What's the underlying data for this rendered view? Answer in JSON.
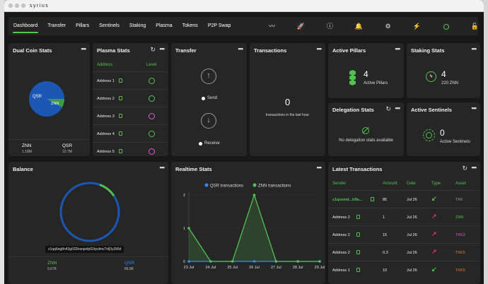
{
  "app": {
    "title": "syrius"
  },
  "nav": {
    "tabs": [
      "Dashboard",
      "Transfer",
      "Pillars",
      "Sentinels",
      "Staking",
      "Plasma",
      "Tokens",
      "P2P Swap"
    ],
    "active": "Dashboard",
    "icons": [
      "swap-wave-icon",
      "rocket-icon",
      "info-icon",
      "bell-icon",
      "gear-icon",
      "bolt-icon",
      "status-circle-icon",
      "lock-icon"
    ]
  },
  "dual_coin": {
    "title": "Dual Coin Stats",
    "pie_labels": {
      "qsr": "QSR",
      "znn": "ZNN"
    },
    "qsr_share": 0.92,
    "znn": {
      "label": "ZNN",
      "value": "1.18M"
    },
    "qsr": {
      "label": "QSR",
      "value": "10.7M"
    }
  },
  "plasma": {
    "title": "Plasma Stats",
    "col_address": "Address",
    "col_level": "Level",
    "rows": [
      {
        "address": "Address 1",
        "level": "green"
      },
      {
        "address": "Address 2",
        "level": "green"
      },
      {
        "address": "Address 3",
        "level": "pink"
      },
      {
        "address": "Address 4",
        "level": "green"
      },
      {
        "address": "Address 5",
        "level": "pink"
      }
    ]
  },
  "transfer": {
    "title": "Transfer",
    "send": "Send",
    "receive": "Receive"
  },
  "transactions": {
    "title": "Transactions",
    "count": "0",
    "caption": "transactions in the last hour"
  },
  "pillars": {
    "title": "Active Pillars",
    "count": "4",
    "caption": "Active Pillars"
  },
  "staking": {
    "title": "Staking Stats",
    "count": "4",
    "caption": "220 ZNN"
  },
  "delegation": {
    "title": "Delegation Stats",
    "caption": "No delegation stats available"
  },
  "sentinels": {
    "title": "Active Sentinels",
    "count": "0",
    "caption": "Active Sentinels"
  },
  "balance": {
    "title": "Balance",
    "address": "z1qq6eg8n43g032hanpsfp02qcdmv7zfj3y2lt5d",
    "znn": {
      "label": "ZNN",
      "value": "9.67K"
    },
    "qsr": {
      "label": "QSR",
      "value": "89.8K"
    },
    "qsr_share": 0.9
  },
  "realtime": {
    "title": "Realtime Stats"
  },
  "chart_data": {
    "type": "line",
    "title": "",
    "categories": [
      "23 Jul",
      "24 Jul",
      "25 Jul",
      "26 Jul",
      "27 Jul",
      "28 Jul",
      "29 Jul"
    ],
    "series": [
      {
        "name": "QSR transactions",
        "color": "#2a8cff",
        "values": [
          0,
          0,
          0,
          0,
          0,
          0,
          0
        ]
      },
      {
        "name": "ZNN transactions",
        "color": "#52c152",
        "values": [
          1,
          0,
          0,
          2,
          0,
          0,
          0
        ]
      }
    ],
    "ylim": [
      0,
      2
    ],
    "yticks": [
      "0",
      "1",
      "2"
    ],
    "legend": "top"
  },
  "latest": {
    "title": "Latest Transactions",
    "headers": [
      "Sender",
      "Amount",
      "Date",
      "Type",
      "Asset"
    ],
    "rows": [
      {
        "sender": "z1qxemd...h9a...",
        "amount": "85",
        "date": "Jul 26",
        "type": "receive",
        "asset": "TKK",
        "asset_color": "#9a9a9a"
      },
      {
        "sender": "Address 2",
        "amount": "1",
        "date": "Jul 26",
        "type": "send",
        "asset": "ZNN",
        "asset_color": "#52c152"
      },
      {
        "sender": "Address 2",
        "amount": "15",
        "date": "Jul 26",
        "type": "send",
        "asset": "TKK2",
        "asset_color": "#e05bd3"
      },
      {
        "sender": "Address 2",
        "amount": "0.3",
        "date": "Jul 26",
        "type": "send",
        "asset": "TKK5",
        "asset_color": "#e07b3a"
      },
      {
        "sender": "Address 1",
        "amount": "10",
        "date": "Jul 26",
        "type": "receive",
        "asset": "TKK5",
        "asset_color": "#e07b3a"
      }
    ]
  }
}
